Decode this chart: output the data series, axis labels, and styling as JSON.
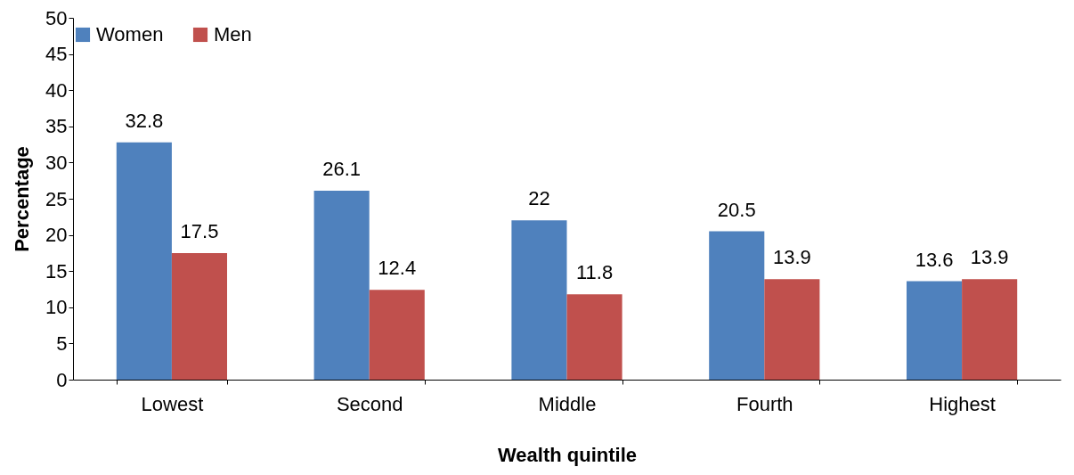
{
  "chart_data": {
    "type": "bar",
    "xlabel": "Wealth quintile",
    "ylabel": "Percentage",
    "categories": [
      "Lowest",
      "Second",
      "Middle",
      "Fourth",
      "Highest"
    ],
    "series": [
      {
        "name": "Women",
        "color": "#4f81bd",
        "values": [
          32.8,
          26.1,
          22,
          20.5,
          13.6
        ]
      },
      {
        "name": "Men",
        "color": "#c0504d",
        "values": [
          17.5,
          12.4,
          11.8,
          13.9,
          13.9
        ]
      }
    ],
    "ylim": [
      0,
      50
    ],
    "yticks": [
      0,
      5,
      10,
      15,
      20,
      25,
      30,
      35,
      40,
      45,
      50
    ],
    "grid": false,
    "legend": "top",
    "data_labels": true
  }
}
